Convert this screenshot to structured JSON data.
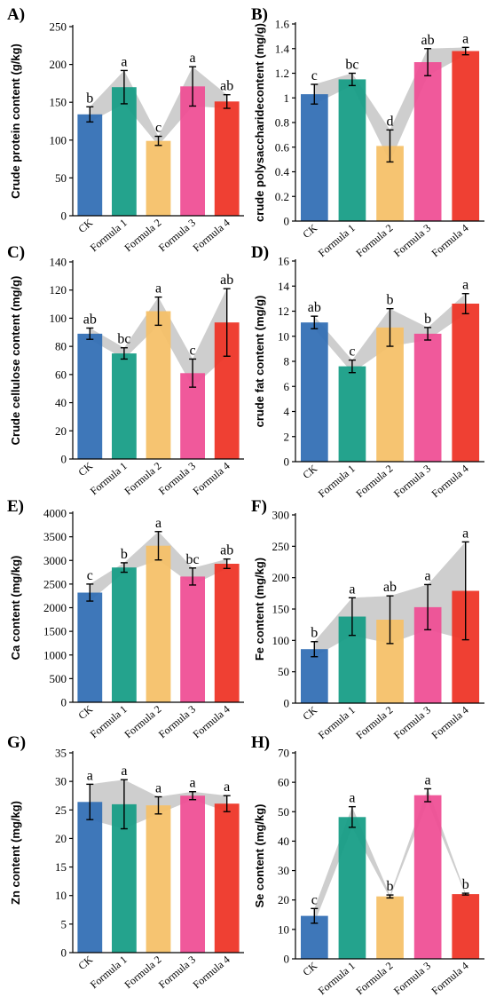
{
  "categories": [
    "CK",
    "Formula 1",
    "Formula 2",
    "Formula 3",
    "Formula 4"
  ],
  "colors": [
    "#2f6db4",
    "#139c84",
    "#f5bf66",
    "#ef4c93",
    "#ee3224"
  ],
  "band_color": "#c9c9c9",
  "chart_data": [
    {
      "panel": "A)",
      "type": "bar",
      "ylabel": "Crude protein content (g/kg)",
      "ylim": [
        0,
        250
      ],
      "yticks": [
        0,
        50,
        100,
        150,
        200,
        250
      ],
      "values": [
        134,
        170,
        99,
        171,
        151
      ],
      "errors": [
        10,
        22,
        6,
        26,
        9
      ],
      "letters": [
        "b",
        "a",
        "c",
        "a",
        "ab"
      ]
    },
    {
      "panel": "B)",
      "type": "bar",
      "ylabel": "crude polysaccharidecontent (mg/g)",
      "ylim": [
        0,
        1.6
      ],
      "yticks": [
        0,
        0.2,
        0.4,
        0.6,
        0.8,
        1,
        1.2,
        1.4,
        1.6
      ],
      "values": [
        1.03,
        1.15,
        0.61,
        1.29,
        1.38
      ],
      "errors": [
        0.08,
        0.05,
        0.13,
        0.11,
        0.03
      ],
      "letters": [
        "c",
        "bc",
        "d",
        "ab",
        "a"
      ]
    },
    {
      "panel": "C)",
      "type": "bar",
      "ylabel": "Crude cellulose content (mg/g)",
      "ylim": [
        0,
        140
      ],
      "yticks": [
        0,
        20,
        40,
        60,
        80,
        100,
        120,
        140
      ],
      "values": [
        89,
        75,
        105,
        61,
        97
      ],
      "errors": [
        4,
        4,
        10,
        10,
        24
      ],
      "letters": [
        "ab",
        "bc",
        "a",
        "c",
        "ab"
      ]
    },
    {
      "panel": "D)",
      "type": "bar",
      "ylabel": "crude fat content (mg/g)",
      "ylim": [
        0,
        16
      ],
      "yticks": [
        0,
        2,
        4,
        6,
        8,
        10,
        12,
        14,
        16
      ],
      "values": [
        11.1,
        7.6,
        10.7,
        10.2,
        12.6
      ],
      "errors": [
        0.5,
        0.5,
        1.5,
        0.5,
        0.8
      ],
      "letters": [
        "ab",
        "c",
        "b",
        "b",
        "a"
      ]
    },
    {
      "panel": "E)",
      "type": "bar",
      "ylabel": "Ca content (mg/kg)",
      "ylim": [
        0,
        4000
      ],
      "yticks": [
        0,
        500,
        1000,
        1500,
        2000,
        2500,
        3000,
        3500,
        4000
      ],
      "values": [
        2320,
        2850,
        3310,
        2660,
        2930
      ],
      "errors": [
        180,
        100,
        300,
        180,
        100
      ],
      "letters": [
        "c",
        "b",
        "a",
        "bc",
        "ab"
      ]
    },
    {
      "panel": "F)",
      "type": "bar",
      "ylabel": "Fe content (mg/kg)",
      "ylim": [
        0,
        300
      ],
      "yticks": [
        0,
        50,
        100,
        150,
        200,
        250,
        300
      ],
      "values": [
        86,
        138,
        133,
        153,
        179
      ],
      "errors": [
        12,
        30,
        38,
        36,
        78
      ],
      "letters": [
        "b",
        "a",
        "ab",
        "a",
        "a"
      ]
    },
    {
      "panel": "G)",
      "type": "bar",
      "ylabel": "Zn content (mg/kg)",
      "ylim": [
        0,
        35
      ],
      "yticks": [
        0,
        5,
        10,
        15,
        20,
        25,
        30,
        35
      ],
      "values": [
        26.4,
        26.0,
        25.8,
        27.5,
        26.1
      ],
      "errors": [
        3.1,
        4.3,
        1.5,
        0.7,
        1.4
      ],
      "letters": [
        "a",
        "a",
        "a",
        "a",
        "a"
      ]
    },
    {
      "panel": "H)",
      "type": "bar",
      "ylabel": "Se content (mg/kg)",
      "ylim": [
        0,
        70
      ],
      "yticks": [
        0,
        10,
        20,
        30,
        40,
        50,
        60,
        70
      ],
      "values": [
        14.6,
        48.2,
        21.2,
        55.6,
        22.0
      ],
      "errors": [
        2.5,
        3.5,
        0.5,
        2.2,
        0.3
      ],
      "letters": [
        "c",
        "a",
        "b",
        "a",
        "b"
      ]
    }
  ]
}
